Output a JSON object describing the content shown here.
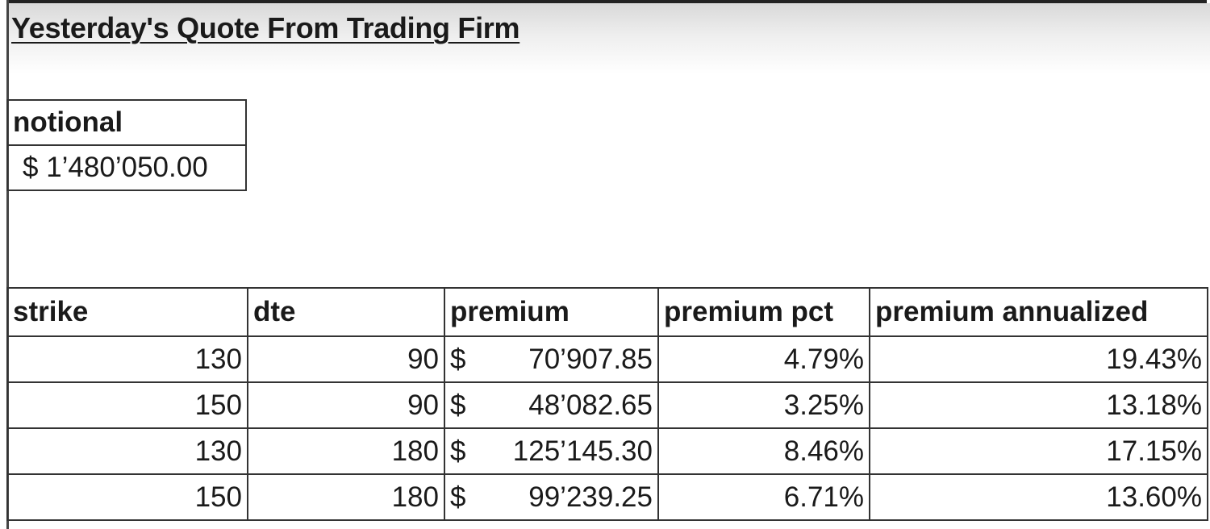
{
  "title": "Yesterday's Quote From Trading Firm",
  "notional": {
    "label": "notional",
    "value": "$ 1’480’050.00"
  },
  "quotes": {
    "headers": [
      "strike",
      "dte",
      "premium",
      "premium pct",
      "premium annualized"
    ],
    "rows": [
      {
        "strike": "130",
        "dte": "90",
        "currency": "$",
        "premium": "70’907.85",
        "premium_pct": "4.79%",
        "premium_annualized": "19.43%"
      },
      {
        "strike": "150",
        "dte": "90",
        "currency": "$",
        "premium": "48’082.65",
        "premium_pct": "3.25%",
        "premium_annualized": "13.18%"
      },
      {
        "strike": "130",
        "dte": "180",
        "currency": "$",
        "premium": "125’145.30",
        "premium_pct": "8.46%",
        "premium_annualized": "17.15%"
      },
      {
        "strike": "150",
        "dte": "180",
        "currency": "$",
        "premium": "99’239.25",
        "premium_pct": "6.71%",
        "premium_annualized": "13.60%"
      }
    ]
  }
}
